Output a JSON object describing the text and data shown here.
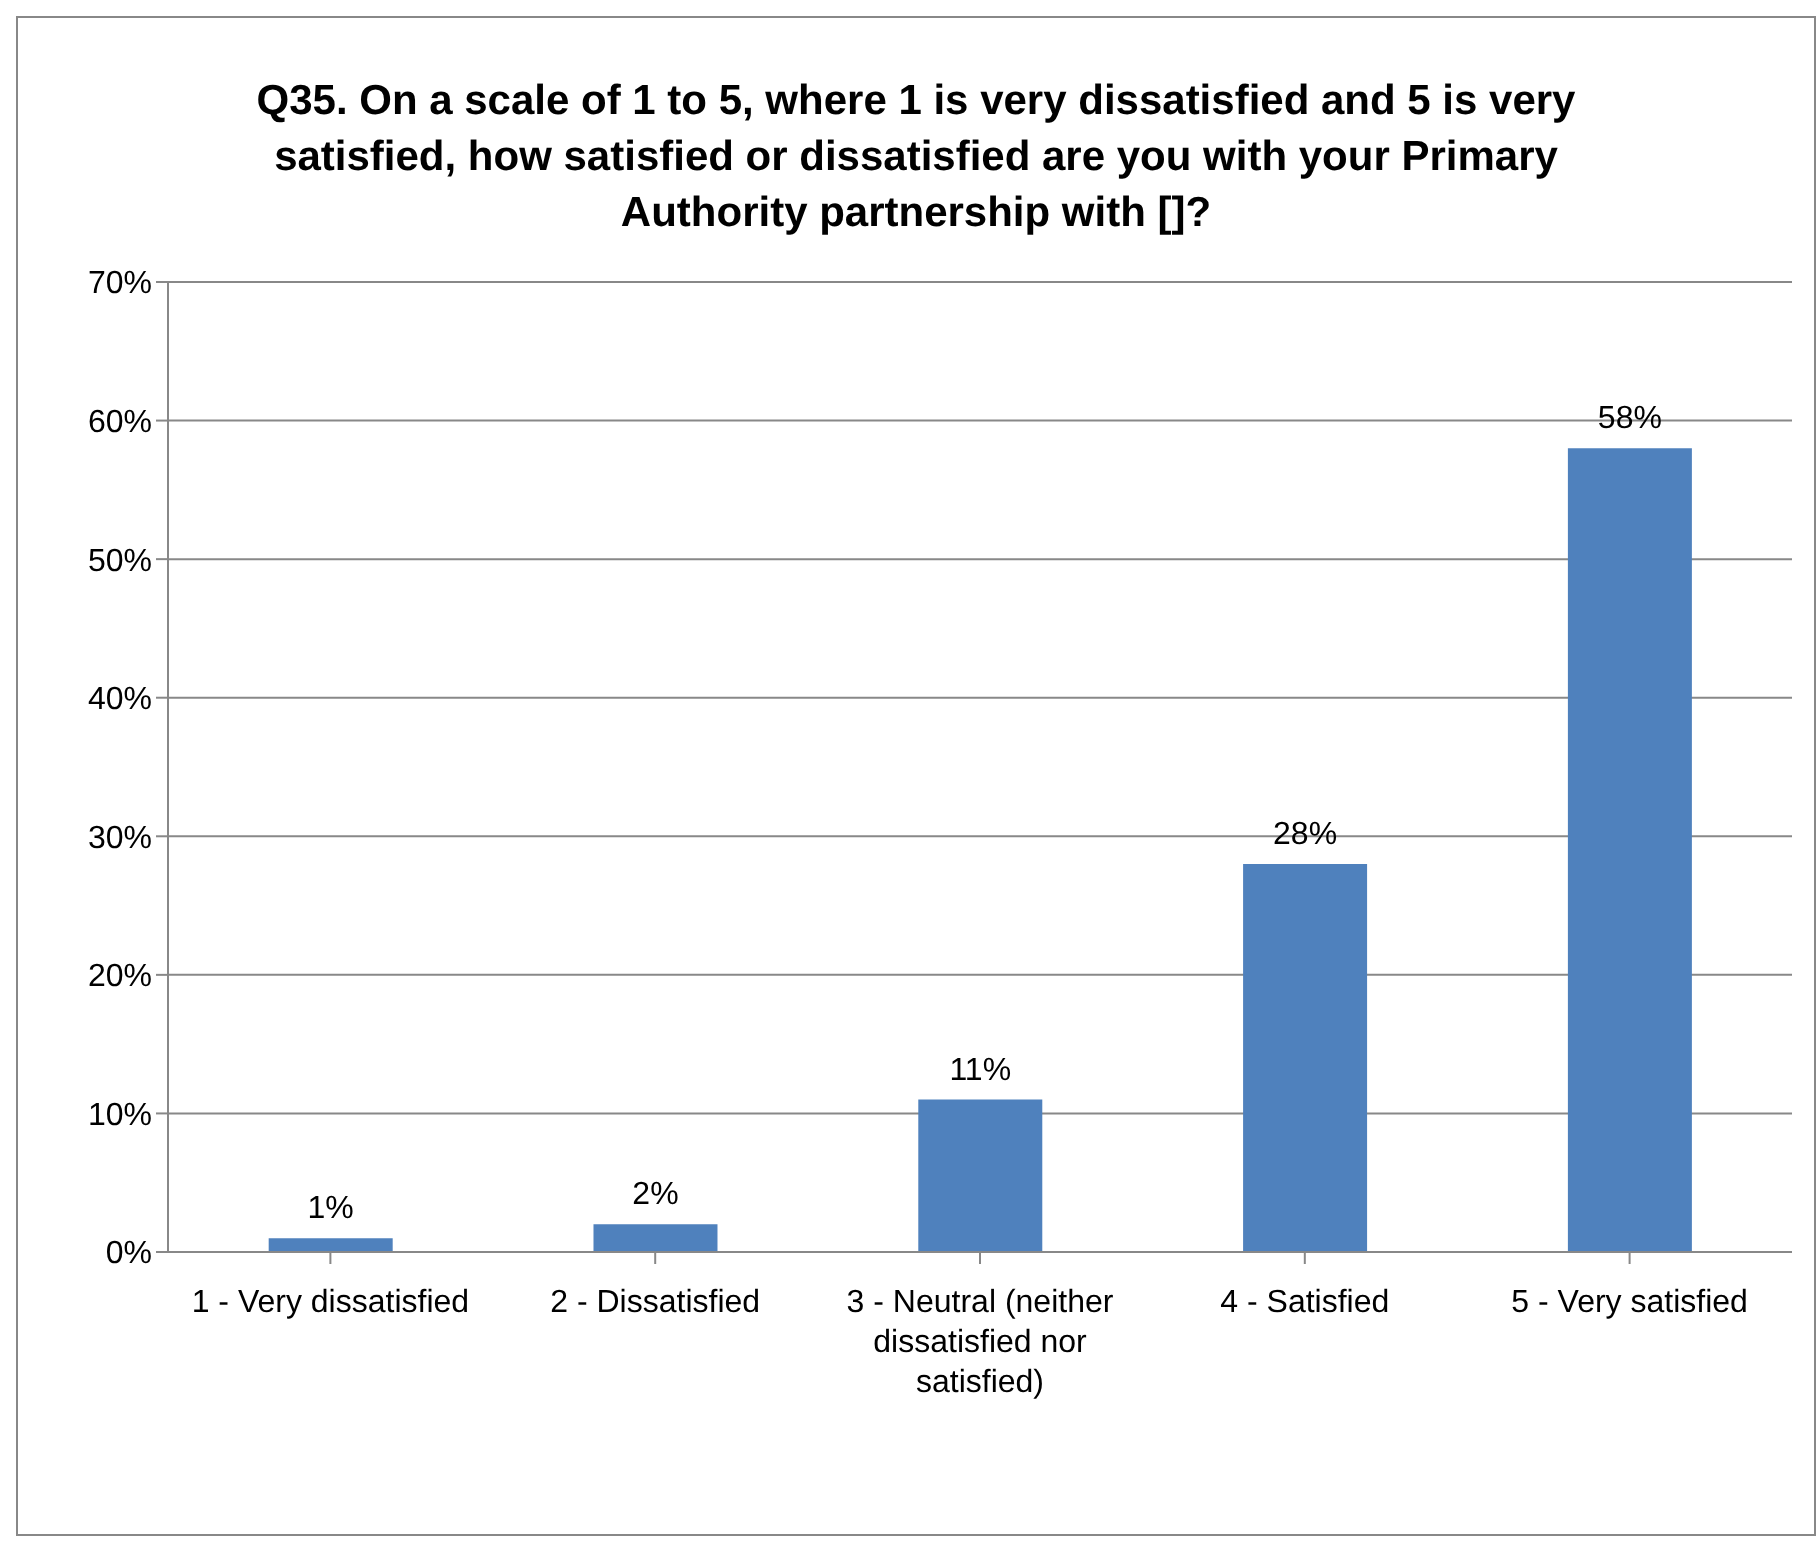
{
  "chart_data": {
    "type": "bar",
    "title": "Q35. On a scale of 1 to 5, where 1 is very dissatisfied and 5 is very satisfied, how satisfied or dissatisfied are you with your Primary Authority partnership with []?",
    "categories": [
      "1 - Very dissatisfied",
      "2 - Dissatisfied",
      "3 - Neutral (neither dissatisfied nor satisfied)",
      "4 - Satisfied",
      "5 - Very satisfied"
    ],
    "values": [
      1,
      2,
      11,
      28,
      58
    ],
    "value_labels": [
      "1%",
      "2%",
      "11%",
      "28%",
      "58%"
    ],
    "color": "#4f81bd",
    "ylim": [
      0,
      70
    ],
    "yticks": [
      {
        "value": 0,
        "label": "0%"
      },
      {
        "value": 10,
        "label": "10%"
      },
      {
        "value": 20,
        "label": "20%"
      },
      {
        "value": 30,
        "label": "30%"
      },
      {
        "value": 40,
        "label": "40%"
      },
      {
        "value": 50,
        "label": "50%"
      },
      {
        "value": 60,
        "label": "60%"
      },
      {
        "value": 70,
        "label": "70%"
      }
    ],
    "grid": "y"
  }
}
